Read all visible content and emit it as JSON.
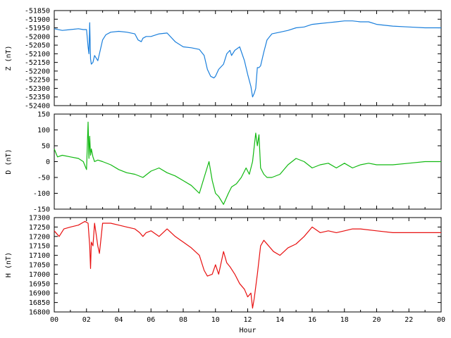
{
  "chart_data": [
    {
      "type": "line",
      "ylabel": "Z (nT)",
      "ylim": [
        -52400,
        -51850
      ],
      "yticks": [
        -51850,
        -51900,
        -51950,
        -52000,
        -52050,
        -52100,
        -52150,
        -52200,
        -52250,
        -52300,
        -52350,
        -52400
      ],
      "xlim": [
        0,
        24
      ],
      "series": [
        {
          "color": "#1a7fdc",
          "x": [
            0.0,
            0.5,
            1.0,
            1.5,
            1.8,
            2.0,
            2.1,
            2.15,
            2.2,
            2.25,
            2.3,
            2.4,
            2.5,
            2.7,
            2.8,
            3.0,
            3.2,
            3.5,
            4.0,
            4.5,
            5.0,
            5.2,
            5.4,
            5.5,
            5.7,
            6.0,
            6.5,
            7.0,
            7.5,
            8.0,
            8.5,
            9.0,
            9.3,
            9.5,
            9.7,
            9.9,
            10.0,
            10.2,
            10.5,
            10.7,
            10.9,
            11.0,
            11.2,
            11.5,
            11.8,
            12.0,
            12.2,
            12.3,
            12.4,
            12.5,
            12.6,
            12.7,
            12.8,
            13.0,
            13.2,
            13.5,
            14.0,
            14.5,
            15.0,
            15.5,
            16.0,
            16.5,
            17.0,
            17.5,
            18.0,
            18.5,
            19.0,
            19.5,
            20.0,
            20.5,
            21.0,
            22.0,
            23.0,
            24.0
          ],
          "y": [
            -51955,
            -51965,
            -51960,
            -51955,
            -51960,
            -51960,
            -52060,
            -52100,
            -51920,
            -52130,
            -52160,
            -52150,
            -52110,
            -52140,
            -52100,
            -52020,
            -51990,
            -51975,
            -51970,
            -51975,
            -51985,
            -52020,
            -52030,
            -52010,
            -52000,
            -52000,
            -51985,
            -51980,
            -52030,
            -52060,
            -52065,
            -52075,
            -52110,
            -52190,
            -52230,
            -52240,
            -52230,
            -52190,
            -52160,
            -52100,
            -52080,
            -52110,
            -52080,
            -52060,
            -52140,
            -52220,
            -52290,
            -52350,
            -52330,
            -52300,
            -52180,
            -52180,
            -52170,
            -52090,
            -52020,
            -51985,
            -51975,
            -51965,
            -51950,
            -51945,
            -51930,
            -51925,
            -51920,
            -51915,
            -51910,
            -51910,
            -51915,
            -51915,
            -51930,
            -51935,
            -51940,
            -51945,
            -51950,
            -51950
          ]
        }
      ]
    },
    {
      "type": "line",
      "ylabel": "D (nT)",
      "ylim": [
        -150,
        150
      ],
      "yticks": [
        150,
        100,
        50,
        0,
        -50,
        -100,
        -150
      ],
      "xlim": [
        0,
        24
      ],
      "series": [
        {
          "color": "#11b911",
          "x": [
            0.0,
            0.2,
            0.5,
            1.0,
            1.5,
            1.8,
            2.0,
            2.1,
            2.15,
            2.2,
            2.25,
            2.3,
            2.4,
            2.5,
            2.7,
            3.0,
            3.5,
            4.0,
            4.5,
            5.0,
            5.5,
            6.0,
            6.5,
            7.0,
            7.5,
            8.0,
            8.5,
            9.0,
            9.3,
            9.6,
            9.8,
            10.0,
            10.2,
            10.5,
            10.8,
            11.0,
            11.3,
            11.6,
            11.9,
            12.1,
            12.3,
            12.5,
            12.6,
            12.7,
            12.8,
            13.0,
            13.2,
            13.5,
            14.0,
            14.5,
            15.0,
            15.5,
            16.0,
            16.5,
            17.0,
            17.5,
            18.0,
            18.5,
            19.0,
            19.5,
            20.0,
            21.0,
            22.0,
            23.0,
            24.0
          ],
          "y": [
            40,
            15,
            20,
            15,
            10,
            0,
            -25,
            125,
            10,
            80,
            20,
            40,
            15,
            0,
            5,
            0,
            -10,
            -25,
            -35,
            -40,
            -50,
            -30,
            -20,
            -35,
            -45,
            -60,
            -75,
            -100,
            -50,
            0,
            -60,
            -100,
            -110,
            -135,
            -100,
            -80,
            -70,
            -50,
            -20,
            -40,
            0,
            90,
            50,
            85,
            -20,
            -40,
            -50,
            -50,
            -40,
            -10,
            10,
            0,
            -20,
            -10,
            -5,
            -20,
            -5,
            -20,
            -10,
            -5,
            -10,
            -10,
            -5,
            0,
            0
          ]
        }
      ]
    },
    {
      "type": "line",
      "ylabel": "H (nT)",
      "xlabel": "Hour",
      "ylim": [
        16800,
        17300
      ],
      "yticks": [
        17300,
        17250,
        17200,
        17150,
        17100,
        17050,
        17000,
        16950,
        16900,
        16850,
        16800
      ],
      "xlim": [
        0,
        24
      ],
      "xticks": [
        "00",
        "02",
        "04",
        "06",
        "08",
        "10",
        "12",
        "14",
        "16",
        "18",
        "20",
        "22",
        "00"
      ],
      "series": [
        {
          "color": "#e81010",
          "x": [
            0.0,
            0.3,
            0.6,
            1.0,
            1.5,
            1.9,
            2.1,
            2.2,
            2.25,
            2.3,
            2.4,
            2.5,
            2.7,
            2.8,
            3.0,
            3.5,
            4.0,
            4.5,
            5.0,
            5.3,
            5.5,
            5.7,
            6.0,
            6.5,
            7.0,
            7.5,
            8.0,
            8.5,
            9.0,
            9.3,
            9.5,
            9.8,
            10.0,
            10.2,
            10.5,
            10.7,
            10.9,
            11.2,
            11.5,
            11.8,
            12.0,
            12.2,
            12.3,
            12.4,
            12.6,
            12.8,
            13.0,
            13.3,
            13.6,
            14.0,
            14.5,
            15.0,
            15.5,
            16.0,
            16.5,
            17.0,
            17.5,
            18.0,
            18.5,
            19.0,
            20.0,
            21.0,
            22.0,
            23.0,
            24.0
          ],
          "y": [
            17230,
            17200,
            17240,
            17250,
            17260,
            17280,
            17270,
            17150,
            17030,
            17170,
            17150,
            17270,
            17150,
            17110,
            17270,
            17270,
            17260,
            17250,
            17240,
            17220,
            17200,
            17220,
            17230,
            17200,
            17240,
            17200,
            17170,
            17140,
            17100,
            17020,
            16990,
            17000,
            17050,
            17000,
            17120,
            17060,
            17040,
            17000,
            16950,
            16920,
            16880,
            16900,
            16820,
            16870,
            17000,
            17150,
            17180,
            17150,
            17120,
            17100,
            17140,
            17160,
            17200,
            17250,
            17220,
            17230,
            17220,
            17230,
            17240,
            17240,
            17230,
            17220,
            17220,
            17220,
            17220
          ]
        }
      ]
    }
  ]
}
